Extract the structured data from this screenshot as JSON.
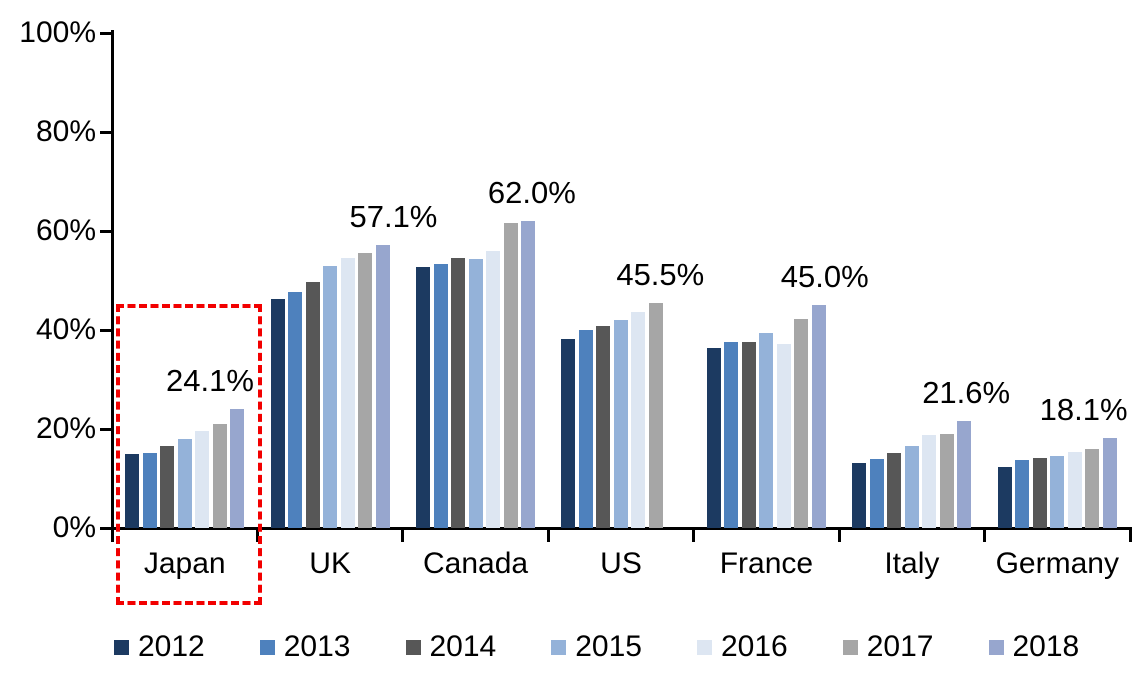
{
  "chart_data": {
    "type": "bar",
    "title": "",
    "xlabel": "",
    "ylabel": "",
    "categories": [
      "Japan",
      "UK",
      "Canada",
      "US",
      "France",
      "Italy",
      "Germany"
    ],
    "series": [
      {
        "name": "2012",
        "color": "#1c3a61",
        "values": [
          14.9,
          46.3,
          52.8,
          38.2,
          36.4,
          13.1,
          12.3
        ]
      },
      {
        "name": "2013",
        "color": "#4e81bd",
        "values": [
          15.1,
          47.6,
          53.3,
          40.0,
          37.6,
          14.0,
          13.7
        ]
      },
      {
        "name": "2014",
        "color": "#575757",
        "values": [
          16.5,
          49.6,
          54.6,
          40.9,
          37.6,
          15.1,
          14.2
        ]
      },
      {
        "name": "2015",
        "color": "#94b2d9",
        "values": [
          17.9,
          52.9,
          54.4,
          42.0,
          39.4,
          16.6,
          14.6
        ]
      },
      {
        "name": "2016",
        "color": "#dde6f2",
        "values": [
          19.7,
          54.5,
          56.0,
          43.6,
          37.2,
          18.7,
          15.3
        ]
      },
      {
        "name": "2017",
        "color": "#a6a6a6",
        "values": [
          21.0,
          55.6,
          61.6,
          45.5,
          42.2,
          19.0,
          15.9
        ]
      },
      {
        "name": "2018",
        "color": "#97a6ce",
        "values": [
          24.1,
          57.1,
          62.0,
          null,
          45.0,
          21.6,
          18.1
        ]
      }
    ],
    "value_labels": [
      "24.1%",
      "57.1%",
      "62.0%",
      "45.5%",
      "45.0%",
      "21.6%",
      "18.1%"
    ],
    "y_ticks": [
      "0%",
      "20%",
      "40%",
      "60%",
      "80%",
      "100%"
    ],
    "ylim": [
      0,
      100
    ],
    "grid": false,
    "legend_position": "bottom",
    "annotations": [
      {
        "type": "highlight-box",
        "target": "Japan",
        "style": "red-dashed"
      }
    ]
  },
  "colors": {
    "axis": "#000000",
    "text": "#000000",
    "highlight": "#f20000",
    "background": "#ffffff"
  }
}
